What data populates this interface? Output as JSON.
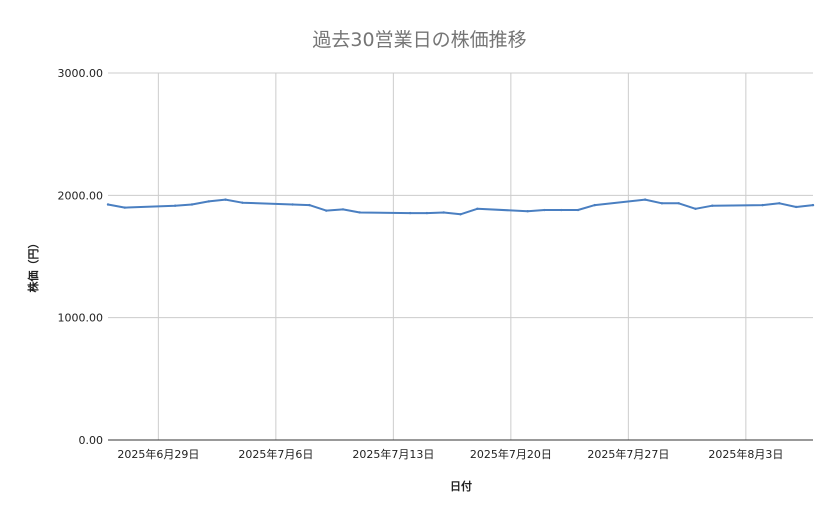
{
  "chart_data": {
    "type": "line",
    "title": "過去30営業日の株価推移",
    "xlabel": "日付",
    "ylabel": "株価（円）",
    "ylim": [
      0,
      3000
    ],
    "yticks": [
      "0.00",
      "1000.00",
      "2000.00",
      "3000.00"
    ],
    "xtick_labels": [
      "2025年6月29日",
      "2025年7月6日",
      "2025年7月13日",
      "2025年7月20日",
      "2025年7月27日",
      "2025年8月3日"
    ],
    "xtick_dates": [
      "2025-06-29",
      "2025-07-06",
      "2025-07-13",
      "2025-07-20",
      "2025-07-27",
      "2025-08-03"
    ],
    "x_range": [
      "2025-06-26",
      "2025-08-07"
    ],
    "grid": true,
    "legend": "none",
    "color": "#4a7fc1",
    "series": [
      {
        "x": [
          "2025-06-26",
          "2025-06-27",
          "2025-06-30",
          "2025-07-01",
          "2025-07-02",
          "2025-07-03",
          "2025-07-04",
          "2025-07-07",
          "2025-07-08",
          "2025-07-09",
          "2025-07-10",
          "2025-07-11",
          "2025-07-14",
          "2025-07-15",
          "2025-07-16",
          "2025-07-17",
          "2025-07-18",
          "2025-07-21",
          "2025-07-22",
          "2025-07-23",
          "2025-07-24",
          "2025-07-25",
          "2025-07-28",
          "2025-07-29",
          "2025-07-30",
          "2025-07-31",
          "2025-08-01",
          "2025-08-04",
          "2025-08-05",
          "2025-08-06",
          "2025-08-07"
        ],
        "values": [
          1925,
          1900,
          1915,
          1925,
          1950,
          1965,
          1940,
          1925,
          1920,
          1875,
          1885,
          1860,
          1855,
          1855,
          1860,
          1845,
          1890,
          1870,
          1880,
          1880,
          1880,
          1920,
          1965,
          1935,
          1935,
          1890,
          1915,
          1920,
          1935,
          1905,
          1920
        ]
      }
    ]
  }
}
